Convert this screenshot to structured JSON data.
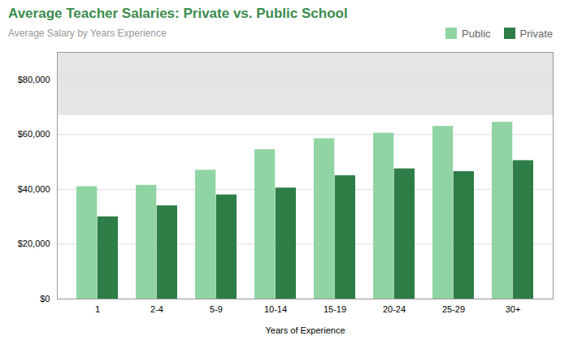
{
  "chart_data": {
    "type": "bar",
    "title": "Average Teacher Salaries: Private vs. Public School",
    "subtitle": "Average Salary by Years Experience",
    "xlabel": "Years of Experience",
    "categories": [
      "1",
      "2-4",
      "5-9",
      "10-14",
      "15-19",
      "20-24",
      "25-29",
      "30+"
    ],
    "series": [
      {
        "name": "Public",
        "color": "#90D4A3",
        "values": [
          41000,
          41500,
          47000,
          54500,
          58500,
          60500,
          63000,
          64500
        ]
      },
      {
        "name": "Private",
        "color": "#2E7D47",
        "values": [
          30000,
          34000,
          38000,
          40500,
          45000,
          47500,
          46500,
          50500
        ]
      }
    ],
    "ylim": [
      0,
      90000
    ],
    "yticks": [
      {
        "value": 0,
        "label": "$0"
      },
      {
        "value": 20000,
        "label": "$20,000"
      },
      {
        "value": 40000,
        "label": "$40,000"
      },
      {
        "value": 60000,
        "label": "$60,000"
      },
      {
        "value": 80000,
        "label": "$80,000"
      }
    ],
    "shaded_range": [
      67000,
      90000
    ],
    "shaded_color": "#e5e5e5",
    "grid": true,
    "legend": "upper right"
  }
}
